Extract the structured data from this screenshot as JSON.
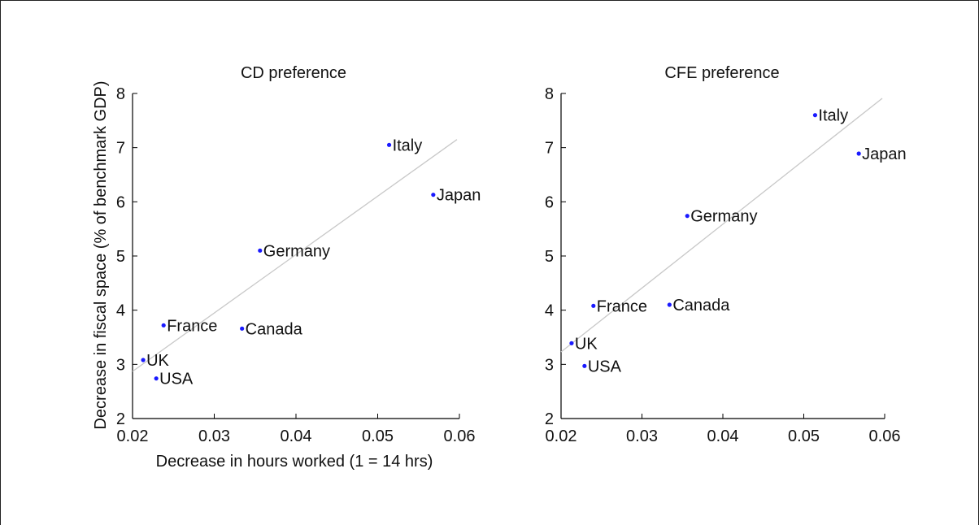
{
  "chart_data": [
    {
      "type": "scatter",
      "title": "CD preference",
      "xlabel": "Decrease in hours worked (1 = 14 hrs)",
      "ylabel": "Decrease in fiscal space (% of benchmark GDP)",
      "xlim": [
        0.02,
        0.06
      ],
      "ylim": [
        2,
        8
      ],
      "xticks": [
        "0.02",
        "0.03",
        "0.04",
        "0.05",
        "0.06"
      ],
      "yticks": [
        "2",
        "3",
        "4",
        "5",
        "6",
        "7",
        "8"
      ],
      "grid": false,
      "point_color": "#1a1aff",
      "fit_color": "#c8c8c8",
      "points": [
        {
          "label": "Italy",
          "x": 0.0514,
          "y": 7.05
        },
        {
          "label": "Japan",
          "x": 0.0568,
          "y": 6.13
        },
        {
          "label": "Germany",
          "x": 0.0356,
          "y": 5.1
        },
        {
          "label": "France",
          "x": 0.0238,
          "y": 3.72
        },
        {
          "label": "Canada",
          "x": 0.0334,
          "y": 3.66
        },
        {
          "label": "UK",
          "x": 0.0213,
          "y": 3.08
        },
        {
          "label": "USA",
          "x": 0.0229,
          "y": 2.74
        }
      ],
      "fit_line": {
        "x": [
          0.02,
          0.0597
        ],
        "y": [
          2.87,
          7.15
        ]
      }
    },
    {
      "type": "scatter",
      "title": "CFE preference",
      "xlabel": "",
      "ylabel": "",
      "xlim": [
        0.02,
        0.06
      ],
      "ylim": [
        2,
        8
      ],
      "xticks": [
        "0.02",
        "0.03",
        "0.04",
        "0.05",
        "0.06"
      ],
      "yticks": [
        "2",
        "3",
        "4",
        "5",
        "6",
        "7",
        "8"
      ],
      "grid": false,
      "point_color": "#1a1aff",
      "fit_color": "#c8c8c8",
      "points": [
        {
          "label": "Italy",
          "x": 0.0514,
          "y": 7.6
        },
        {
          "label": "Japan",
          "x": 0.0568,
          "y": 6.89
        },
        {
          "label": "Germany",
          "x": 0.0356,
          "y": 5.74
        },
        {
          "label": "France",
          "x": 0.024,
          "y": 4.08
        },
        {
          "label": "Canada",
          "x": 0.0334,
          "y": 4.1
        },
        {
          "label": "UK",
          "x": 0.0213,
          "y": 3.39
        },
        {
          "label": "USA",
          "x": 0.0229,
          "y": 2.97
        }
      ],
      "fit_line": {
        "x": [
          0.02,
          0.0597
        ],
        "y": [
          3.23,
          7.91
        ]
      }
    }
  ]
}
